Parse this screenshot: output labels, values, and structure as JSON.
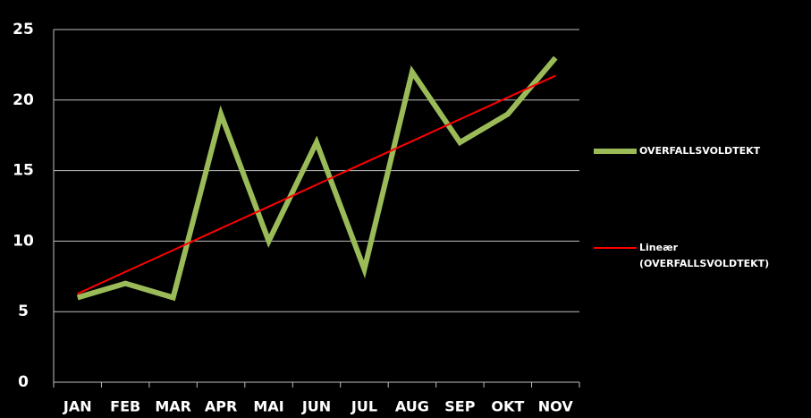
{
  "chart_data": {
    "type": "line",
    "categories": [
      "JAN",
      "FEB",
      "MAR",
      "APR",
      "MAI",
      "JUN",
      "JUL",
      "AUG",
      "SEP",
      "OKT",
      "NOV"
    ],
    "series": [
      {
        "name": "OVERFALLSVOLDTEKT",
        "color": "#9bbb59",
        "values": [
          6,
          7,
          6,
          19,
          10,
          17,
          8,
          22,
          17,
          19,
          23
        ]
      },
      {
        "name": "Lineær (OVERFALLSVOLDTEKT)",
        "color": "#ff0000",
        "values": [
          6.27,
          7.82,
          9.36,
          10.91,
          12.45,
          14,
          15.55,
          17.09,
          18.64,
          20.18,
          21.73
        ]
      }
    ],
    "ylim": [
      0,
      25
    ],
    "yticks": [
      0,
      5,
      10,
      15,
      20,
      25
    ],
    "grid": true,
    "legend": "right"
  }
}
